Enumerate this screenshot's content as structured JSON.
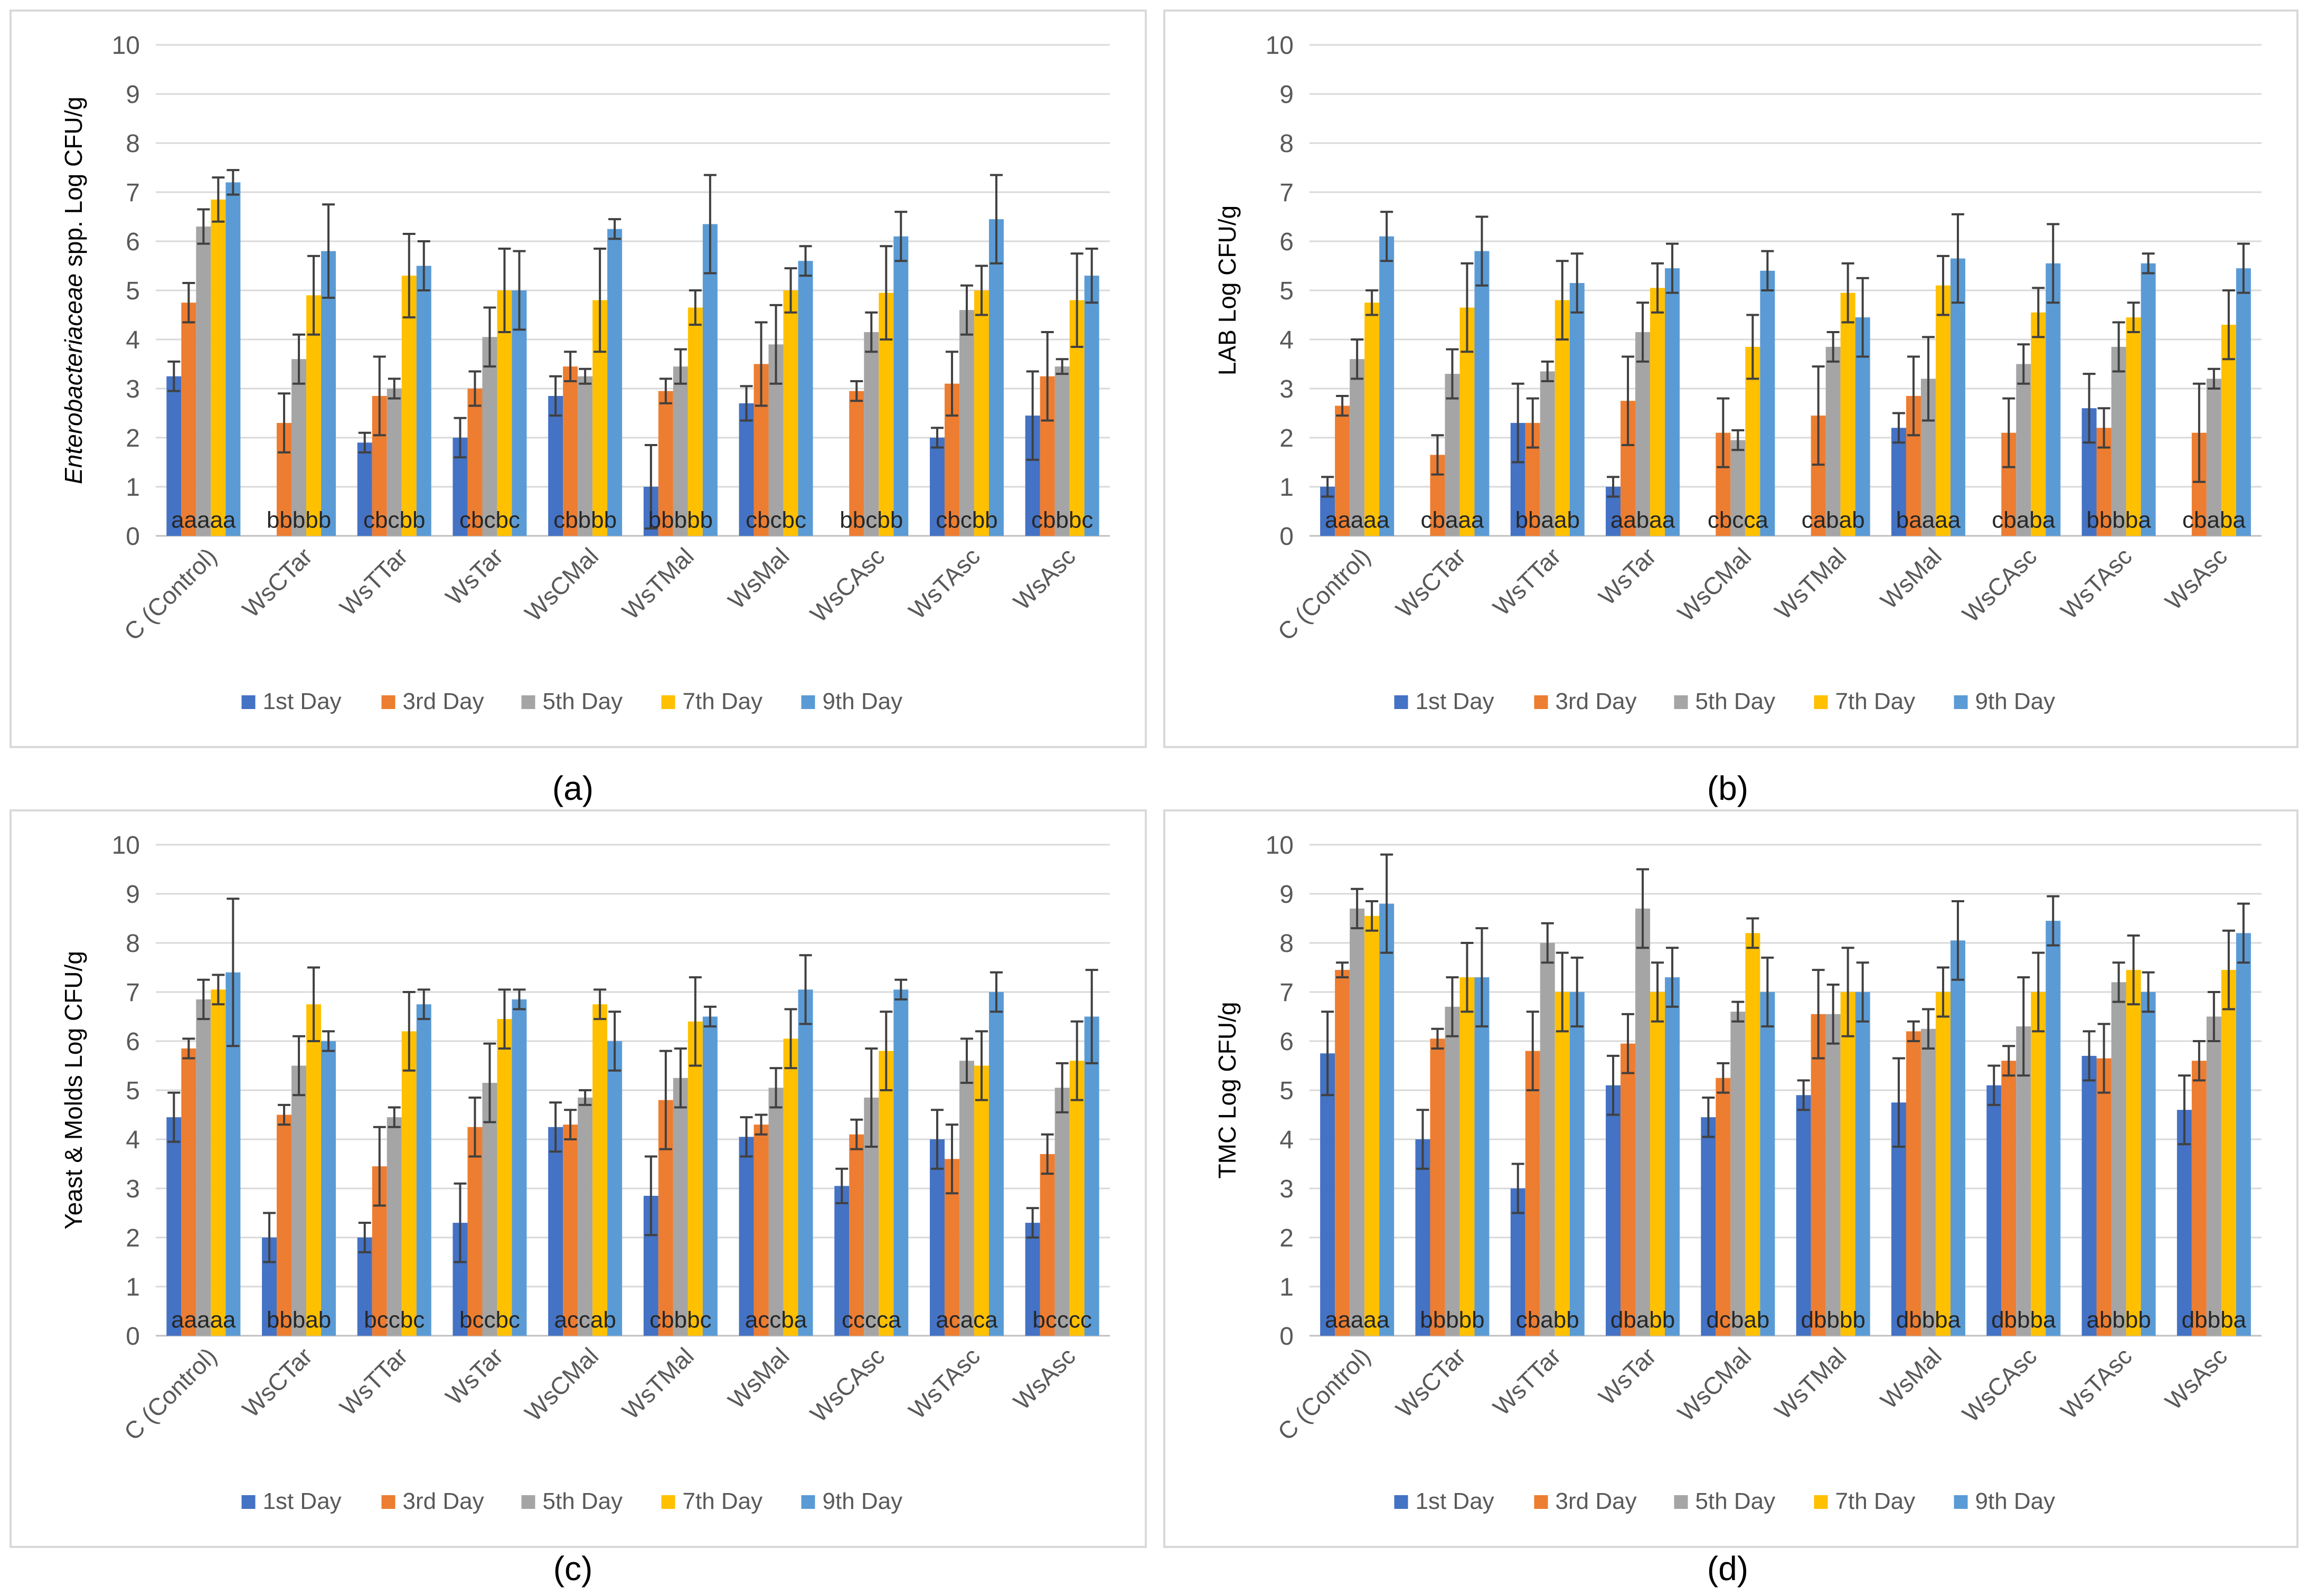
{
  "series_names": [
    "1st Day",
    "3rd Day",
    "5th Day",
    "7th Day",
    "9th Day"
  ],
  "colors": [
    "#4472C4",
    "#ED7D31",
    "#A5A5A5",
    "#FFC000",
    "#5B9BD5"
  ],
  "categories": [
    "C (Control)",
    "WsCTar",
    "WsTTar",
    "WsTar",
    "WsCMal",
    "WsTMal",
    "WsMal",
    "WsCAsc",
    "WsTAsc",
    "WsAsc"
  ],
  "chart_data": [
    {
      "panel": "a",
      "panel_label": "(a)",
      "type": "bar",
      "ylabel_italic": "Enterobacteriaceae",
      "ylabel_rest": " spp. Log CFU/g",
      "ylim": [
        0,
        10
      ],
      "yticks": [
        0,
        1,
        2,
        3,
        4,
        5,
        6,
        7,
        8,
        9,
        10
      ],
      "letters": [
        "aaaaa",
        "bbbbb",
        "cbcbb",
        "cbcbc",
        "cbbbb",
        "bbbbb",
        "cbcbc",
        "bbcbb",
        "cbcbb",
        "cbbbc"
      ],
      "series": [
        {
          "name": "1st Day",
          "values": [
            3.25,
            0,
            1.9,
            2.0,
            2.85,
            1.0,
            2.7,
            0,
            2.0,
            2.45
          ],
          "errors": [
            0.3,
            0,
            0.2,
            0.4,
            0.4,
            0.85,
            0.35,
            0,
            0.2,
            0.9
          ]
        },
        {
          "name": "3rd Day",
          "values": [
            4.75,
            2.3,
            2.85,
            3.0,
            3.45,
            2.95,
            3.5,
            2.95,
            3.1,
            3.25
          ],
          "errors": [
            0.4,
            0.6,
            0.8,
            0.35,
            0.3,
            0.25,
            0.85,
            0.2,
            0.65,
            0.9
          ]
        },
        {
          "name": "5th Day",
          "values": [
            6.3,
            3.6,
            3.0,
            4.05,
            3.25,
            3.45,
            3.9,
            4.15,
            4.6,
            3.45
          ],
          "errors": [
            0.35,
            0.5,
            0.2,
            0.6,
            0.15,
            0.35,
            0.8,
            0.4,
            0.5,
            0.15
          ]
        },
        {
          "name": "7th Day",
          "values": [
            6.85,
            4.9,
            5.3,
            5.0,
            4.8,
            4.65,
            5.0,
            4.95,
            5.0,
            4.8
          ],
          "errors": [
            0.45,
            0.8,
            0.85,
            0.85,
            1.05,
            0.35,
            0.45,
            0.95,
            0.5,
            0.95
          ]
        },
        {
          "name": "9th Day",
          "values": [
            7.2,
            5.8,
            5.5,
            5.0,
            6.25,
            6.35,
            5.6,
            6.1,
            6.45,
            5.3
          ],
          "errors": [
            0.25,
            0.95,
            0.5,
            0.8,
            0.2,
            1.0,
            0.3,
            0.5,
            0.9,
            0.55
          ]
        }
      ]
    },
    {
      "panel": "b",
      "panel_label": "(b)",
      "type": "bar",
      "ylabel_italic": "",
      "ylabel_rest": "LAB Log CFU/g",
      "ylim": [
        0,
        10
      ],
      "yticks": [
        0,
        1,
        2,
        3,
        4,
        5,
        6,
        7,
        8,
        9,
        10
      ],
      "letters": [
        "aaaaa",
        "cbaaa",
        "bbaab",
        "aabaa",
        "cbcca",
        "cabab",
        "baaaa",
        "cbaba",
        "bbbba",
        "cbaba"
      ],
      "series": [
        {
          "name": "1st Day",
          "values": [
            1.0,
            0,
            2.3,
            1.0,
            0,
            0,
            2.2,
            0,
            2.6,
            0
          ],
          "errors": [
            0.2,
            0,
            0.8,
            0.2,
            0,
            0,
            0.3,
            0,
            0.7,
            0
          ]
        },
        {
          "name": "3rd Day",
          "values": [
            2.65,
            1.65,
            2.3,
            2.75,
            2.1,
            2.45,
            2.85,
            2.1,
            2.2,
            2.1
          ],
          "errors": [
            0.2,
            0.4,
            0.5,
            0.9,
            0.7,
            1.0,
            0.8,
            0.7,
            0.4,
            1.0
          ]
        },
        {
          "name": "5th Day",
          "values": [
            3.6,
            3.3,
            3.35,
            4.15,
            1.95,
            3.85,
            3.2,
            3.5,
            3.85,
            3.2
          ],
          "errors": [
            0.4,
            0.5,
            0.2,
            0.6,
            0.2,
            0.3,
            0.85,
            0.4,
            0.5,
            0.2
          ]
        },
        {
          "name": "7th Day",
          "values": [
            4.75,
            4.65,
            4.8,
            5.05,
            3.85,
            4.95,
            5.1,
            4.55,
            4.45,
            4.3
          ],
          "errors": [
            0.25,
            0.9,
            0.8,
            0.5,
            0.65,
            0.6,
            0.6,
            0.5,
            0.3,
            0.7
          ]
        },
        {
          "name": "9th Day",
          "values": [
            6.1,
            5.8,
            5.15,
            5.45,
            5.4,
            4.45,
            5.65,
            5.55,
            5.55,
            5.45
          ],
          "errors": [
            0.5,
            0.7,
            0.6,
            0.5,
            0.4,
            0.8,
            0.9,
            0.8,
            0.2,
            0.5
          ]
        }
      ]
    },
    {
      "panel": "c",
      "panel_label": "(c)",
      "type": "bar",
      "ylabel_italic": "",
      "ylabel_rest": "Yeast & Molds Log CFU/g",
      "ylim": [
        0,
        10
      ],
      "yticks": [
        0,
        1,
        2,
        3,
        4,
        5,
        6,
        7,
        8,
        9,
        10
      ],
      "letters": [
        "aaaaa",
        "bbbab",
        "bccbc",
        "bccbc",
        "accab",
        "cbbbc",
        "accba",
        "cccca",
        "acaca",
        "bcccc"
      ],
      "series": [
        {
          "name": "1st Day",
          "values": [
            4.45,
            2.0,
            2.0,
            2.3,
            4.25,
            2.85,
            4.05,
            3.05,
            4.0,
            2.3
          ],
          "errors": [
            0.5,
            0.5,
            0.3,
            0.8,
            0.5,
            0.8,
            0.4,
            0.35,
            0.6,
            0.3
          ]
        },
        {
          "name": "3rd Day",
          "values": [
            5.85,
            4.5,
            3.45,
            4.25,
            4.3,
            4.8,
            4.3,
            4.1,
            3.6,
            3.7
          ],
          "errors": [
            0.2,
            0.2,
            0.8,
            0.6,
            0.3,
            1.0,
            0.2,
            0.3,
            0.7,
            0.4
          ]
        },
        {
          "name": "5th Day",
          "values": [
            6.85,
            5.5,
            4.45,
            5.15,
            4.85,
            5.25,
            5.05,
            4.85,
            5.6,
            5.05
          ],
          "errors": [
            0.4,
            0.6,
            0.2,
            0.8,
            0.15,
            0.6,
            0.4,
            1.0,
            0.45,
            0.5
          ]
        },
        {
          "name": "7th Day",
          "values": [
            7.05,
            6.75,
            6.2,
            6.45,
            6.75,
            6.4,
            6.05,
            5.8,
            5.5,
            5.6
          ],
          "errors": [
            0.3,
            0.75,
            0.8,
            0.6,
            0.3,
            0.9,
            0.6,
            0.8,
            0.7,
            0.8
          ]
        },
        {
          "name": "9th Day",
          "values": [
            7.4,
            6.0,
            6.75,
            6.85,
            6.0,
            6.5,
            7.05,
            7.05,
            7.0,
            6.5
          ],
          "errors": [
            1.5,
            0.2,
            0.3,
            0.2,
            0.6,
            0.2,
            0.7,
            0.2,
            0.4,
            0.95
          ]
        }
      ]
    },
    {
      "panel": "d",
      "panel_label": "(d)",
      "type": "bar",
      "ylabel_italic": "",
      "ylabel_rest": "TMC Log CFU/g",
      "ylim": [
        0,
        10
      ],
      "yticks": [
        0,
        1,
        2,
        3,
        4,
        5,
        6,
        7,
        8,
        9,
        10
      ],
      "letters": [
        "aaaaa",
        "bbbbb",
        "cbabb",
        "dbabb",
        "dcbab",
        "dbbbb",
        "dbbba",
        "dbbba",
        "abbbb",
        "dbbba"
      ],
      "series": [
        {
          "name": "1st Day",
          "values": [
            5.75,
            4.0,
            3.0,
            5.1,
            4.45,
            4.9,
            4.75,
            5.1,
            5.7,
            4.6
          ],
          "errors": [
            0.85,
            0.6,
            0.5,
            0.6,
            0.4,
            0.3,
            0.9,
            0.4,
            0.5,
            0.7
          ]
        },
        {
          "name": "3rd Day",
          "values": [
            7.45,
            6.05,
            5.8,
            5.95,
            5.25,
            6.55,
            6.2,
            5.6,
            5.65,
            5.6
          ],
          "errors": [
            0.15,
            0.2,
            0.8,
            0.6,
            0.3,
            0.9,
            0.2,
            0.3,
            0.7,
            0.4
          ]
        },
        {
          "name": "5th Day",
          "values": [
            8.7,
            6.7,
            8.0,
            8.7,
            6.6,
            6.55,
            6.25,
            6.3,
            7.2,
            6.5
          ],
          "errors": [
            0.4,
            0.6,
            0.4,
            0.8,
            0.2,
            0.6,
            0.4,
            1.0,
            0.4,
            0.5
          ]
        },
        {
          "name": "7th Day",
          "values": [
            8.55,
            7.3,
            7.0,
            7.0,
            8.2,
            7.0,
            7.0,
            7.0,
            7.45,
            7.45
          ],
          "errors": [
            0.3,
            0.7,
            0.8,
            0.6,
            0.3,
            0.9,
            0.5,
            0.8,
            0.7,
            0.8
          ]
        },
        {
          "name": "9th Day",
          "values": [
            8.8,
            7.3,
            7.0,
            7.3,
            7.0,
            7.0,
            8.05,
            8.45,
            7.0,
            8.2
          ],
          "errors": [
            1.0,
            1.0,
            0.7,
            0.6,
            0.7,
            0.6,
            0.8,
            0.5,
            0.4,
            0.6
          ]
        }
      ]
    }
  ]
}
